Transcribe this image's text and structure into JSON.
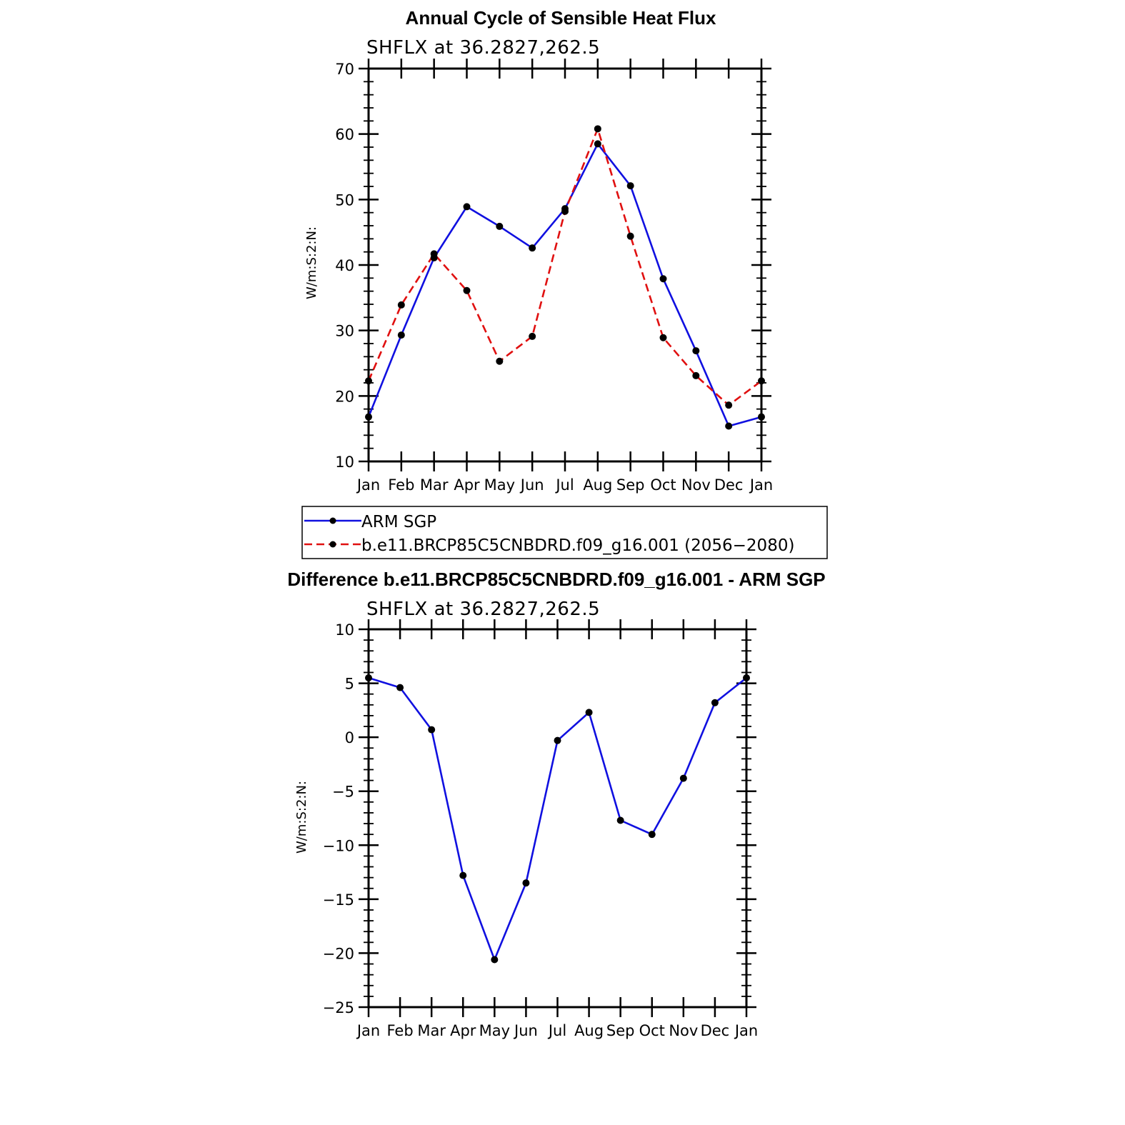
{
  "colors": {
    "obs": "#1010e0",
    "model": "#e01010",
    "diff": "#1010e0",
    "marker": "#000000"
  },
  "chart_data": [
    {
      "type": "line",
      "title": "Annual Cycle of Sensible Heat Flux",
      "subtitle": "SHFLX at 36.2827,262.5",
      "xlabel": "",
      "ylabel": "W/m:S:2:N:",
      "categories": [
        "Jan",
        "Feb",
        "Mar",
        "Apr",
        "May",
        "Jun",
        "Jul",
        "Aug",
        "Sep",
        "Oct",
        "Nov",
        "Dec",
        "Jan"
      ],
      "ylim": [
        10,
        70
      ],
      "yticks": [
        "10",
        "20",
        "30",
        "40",
        "50",
        "60",
        "70"
      ],
      "series": [
        {
          "name": "ARM SGP",
          "style": "solid",
          "values": [
            16.8,
            29.3,
            41.1,
            48.9,
            45.9,
            42.6,
            48.6,
            58.5,
            52.1,
            37.9,
            26.9,
            15.4,
            16.8
          ]
        },
        {
          "name": "b.e11.BRCP85C5CNBDRD.f09_g16.001 (2056−2080)",
          "style": "dashed",
          "values": [
            22.3,
            33.9,
            41.7,
            36.1,
            25.3,
            29.1,
            48.2,
            60.8,
            44.4,
            28.9,
            23.1,
            18.6,
            22.3
          ]
        }
      ],
      "legend": "below"
    },
    {
      "type": "line",
      "title": "Difference b.e11.BRCP85C5CNBDRD.f09_g16.001 - ARM SGP",
      "subtitle": "SHFLX at 36.2827,262.5",
      "xlabel": "",
      "ylabel": "W/m:S:2:N:",
      "categories": [
        "Jan",
        "Feb",
        "Mar",
        "Apr",
        "May",
        "Jun",
        "Jul",
        "Aug",
        "Sep",
        "Oct",
        "Nov",
        "Dec",
        "Jan"
      ],
      "ylim": [
        -25,
        10
      ],
      "yticks": [
        "−25",
        "−20",
        "−15",
        "−10",
        "−5",
        "0",
        "5",
        "10"
      ],
      "series": [
        {
          "values": [
            5.5,
            4.6,
            0.7,
            -12.8,
            -20.6,
            -13.5,
            -0.3,
            2.3,
            -7.7,
            -9.0,
            -3.8,
            3.2,
            5.5
          ]
        }
      ]
    }
  ]
}
